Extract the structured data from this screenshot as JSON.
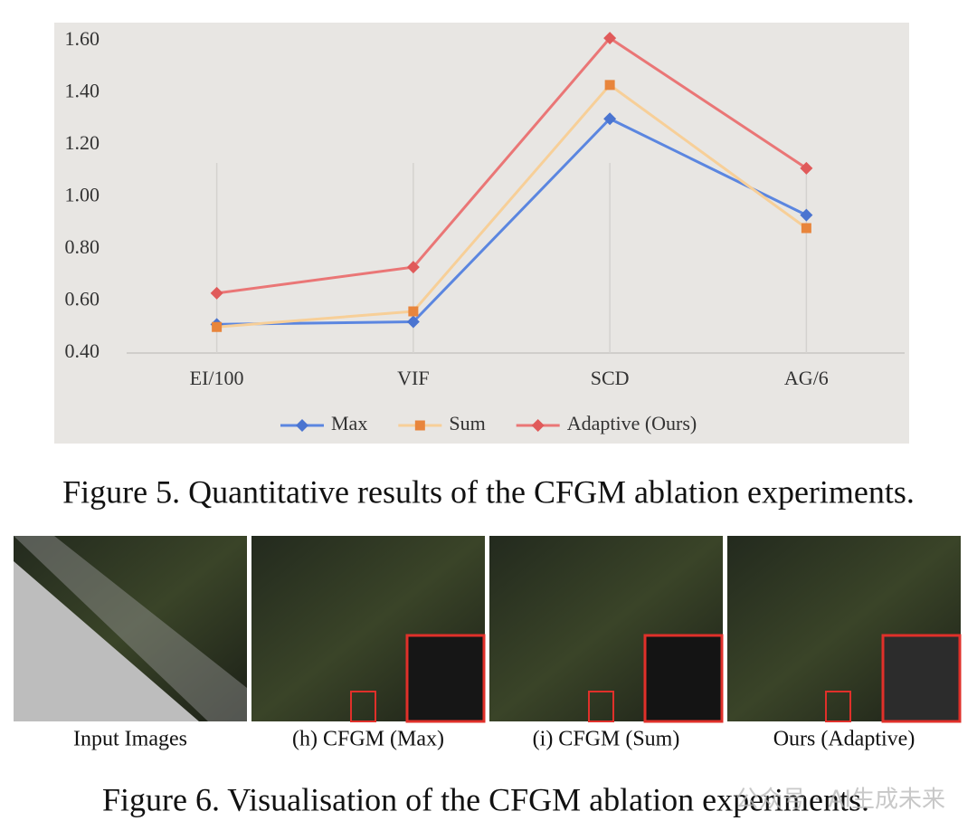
{
  "chart_data": {
    "type": "line",
    "categories": [
      "EI/100",
      "VIF",
      "SCD",
      "AG/6"
    ],
    "series": [
      {
        "name": "Max",
        "color": "#5b86e0",
        "marker": "diamond",
        "marker_color": "#4a74d0",
        "values": [
          0.51,
          0.52,
          1.3,
          0.93
        ]
      },
      {
        "name": "Sum",
        "color": "#f7cf98",
        "marker": "square",
        "marker_color": "#e8853c",
        "values": [
          0.5,
          0.56,
          1.43,
          0.88
        ]
      },
      {
        "name": "Adaptive (Ours)",
        "color": "#ea7676",
        "marker": "diamond",
        "marker_color": "#e05a5a",
        "values": [
          0.63,
          0.73,
          1.61,
          1.11
        ]
      }
    ],
    "ylim": [
      0.4,
      1.6
    ],
    "yticks": [
      {
        "value": 0.4,
        "label": "0.40"
      },
      {
        "value": 0.6,
        "label": "0.60"
      },
      {
        "value": 0.8,
        "label": "0.80"
      },
      {
        "value": 1.0,
        "label": "1.00"
      },
      {
        "value": 1.2,
        "label": "1.20"
      },
      {
        "value": 1.4,
        "label": "1.40"
      },
      {
        "value": 1.6,
        "label": "1.60"
      }
    ],
    "legend": "bottom"
  },
  "figure5_caption": "Figure 5. Quantitative results of the CFGM ablation experiments.",
  "figure6": {
    "panels": [
      {
        "label": "Input Images"
      },
      {
        "label": "(h) CFGM (Max)"
      },
      {
        "label": "(i) CFGM (Sum)"
      },
      {
        "label": "Ours (Adaptive)"
      }
    ],
    "caption": "Figure 6. Visualisation of the CFGM ablation experiments."
  },
  "watermark": "公众号 · AI生成未来"
}
